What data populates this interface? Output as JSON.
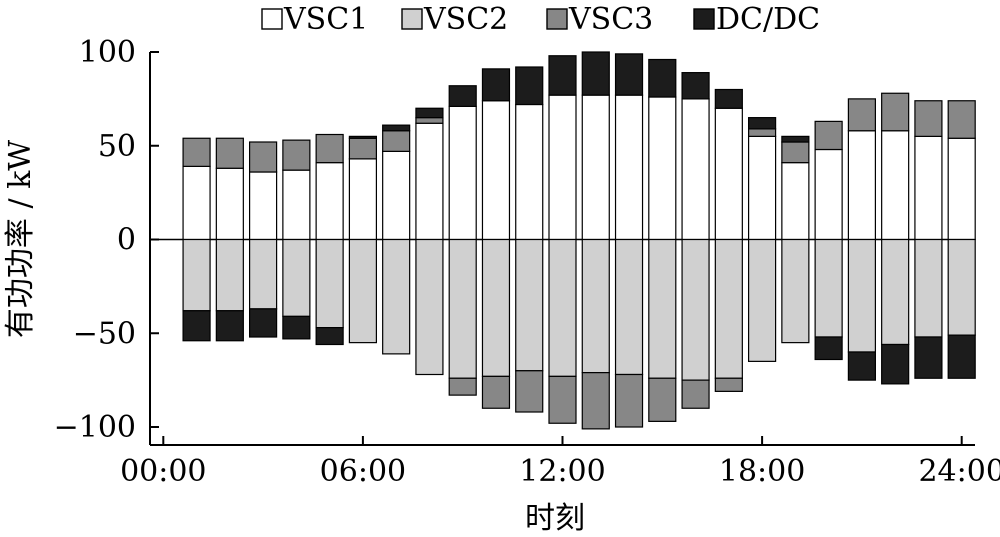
{
  "chart_data": {
    "type": "bar",
    "stacked": true,
    "title": "",
    "xlabel": "时刻",
    "ylabel": "有功功率 / kW",
    "ylim": [
      -100,
      100
    ],
    "y_ticks": [
      -100,
      -50,
      0,
      50,
      100
    ],
    "y_tick_labels": [
      "−100",
      "−50",
      "0",
      "50",
      "100"
    ],
    "x_ticks": [
      0,
      6,
      12,
      18,
      24
    ],
    "x_tick_labels": [
      "00:00",
      "06:00",
      "12:00",
      "18:00",
      "24:00"
    ],
    "xlim": [
      -0.4,
      24.4
    ],
    "x": [
      1,
      2,
      3,
      4,
      5,
      6,
      7,
      8,
      9,
      10,
      11,
      12,
      13,
      14,
      15,
      16,
      17,
      18,
      19,
      20,
      21,
      22,
      23,
      24
    ],
    "legend": {
      "position": "top"
    },
    "series": [
      {
        "name": "VSC1",
        "color": "#ffffff",
        "values": [
          39,
          38,
          36,
          37,
          41,
          43,
          47,
          62,
          71,
          74,
          72,
          77,
          77,
          77,
          76,
          75,
          70,
          55,
          41,
          48,
          58,
          58,
          55,
          54
        ]
      },
      {
        "name": "VSC2",
        "color": "#d0d0d0",
        "values": [
          -38,
          -38,
          -37,
          -41,
          -47,
          -55,
          -61,
          -72,
          -74,
          -73,
          -70,
          -73,
          -71,
          -72,
          -74,
          -75,
          -74,
          -65,
          -55,
          -52,
          -60,
          -56,
          -52,
          -51
        ]
      },
      {
        "name": "VSC3",
        "color": "#878787",
        "values": [
          15,
          16,
          16,
          16,
          15,
          11,
          11,
          3,
          -9,
          -17,
          -22,
          -25,
          -30,
          -28,
          -23,
          -15,
          -7,
          4,
          11,
          15,
          17,
          20,
          19,
          20
        ]
      },
      {
        "name": "DC/DC",
        "color": "#1c1c1c",
        "values": [
          -16,
          -16,
          -15,
          -12,
          -9,
          1,
          3,
          5,
          11,
          17,
          20,
          21,
          23,
          22,
          20,
          14,
          10,
          6,
          3,
          -12,
          -15,
          -21,
          -22,
          -23
        ]
      }
    ]
  }
}
